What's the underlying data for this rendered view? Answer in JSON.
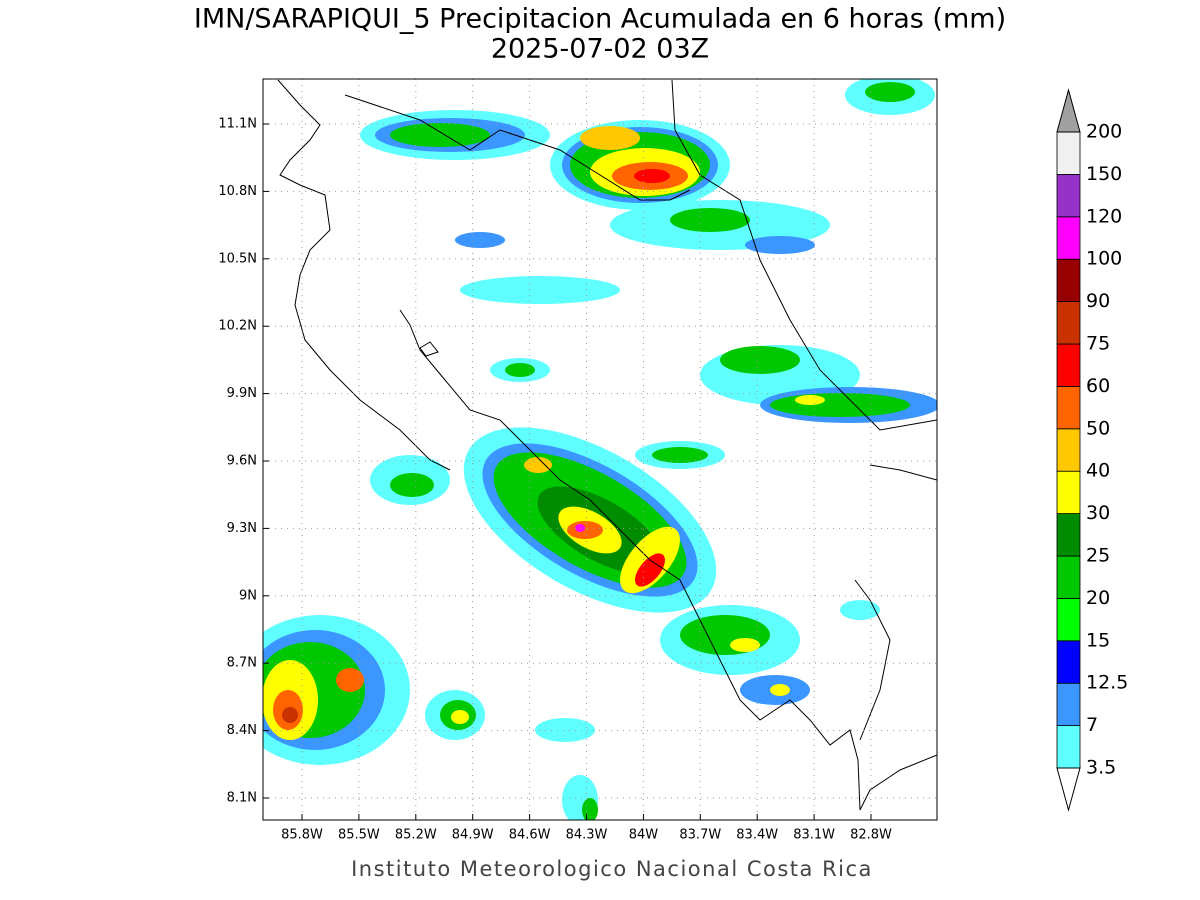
{
  "header": {
    "title": "IMN/SARAPIQUI_5 Precipitacion Acumulada en 6 horas (mm)",
    "subtitle": "2025-07-02 03Z"
  },
  "map": {
    "lat_labels": [
      "11.1N",
      "10.8N",
      "10.5N",
      "10.2N",
      "9.9N",
      "9.6N",
      "9.3N",
      "9N",
      "8.7N",
      "8.4N",
      "8.1N"
    ],
    "lon_labels": [
      "85.8W",
      "85.5W",
      "85.2W",
      "84.9W",
      "84.6W",
      "84.3W",
      "84W",
      "83.7W",
      "83.4W",
      "83.1W",
      "82.8W"
    ]
  },
  "colorbar": {
    "levels": [
      "3.5",
      "7",
      "12.5",
      "15",
      "20",
      "25",
      "30",
      "40",
      "50",
      "60",
      "75",
      "90",
      "100",
      "120",
      "150",
      "200"
    ],
    "colors": [
      "#60ffff",
      "#3c96ff",
      "#0000ff",
      "#00ff00",
      "#00c800",
      "#008c00",
      "#ffff00",
      "#ffc800",
      "#ff6400",
      "#ff0000",
      "#c83200",
      "#960000",
      "#ff00ff",
      "#9632c8",
      "#f0f0f0"
    ],
    "under_color": "#ffffff",
    "over_color": "#a0a0a0"
  },
  "footer": "Instituto Meteorologico Nacional Costa Rica"
}
